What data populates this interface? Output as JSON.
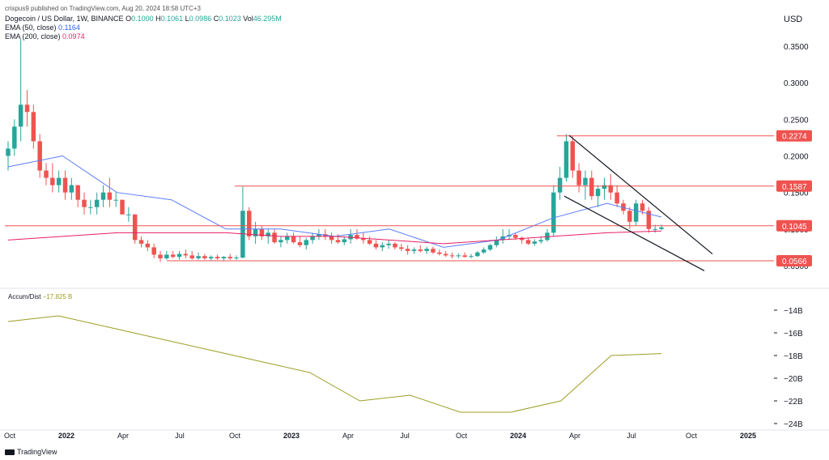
{
  "header": {
    "attribution": "crispus9 published on TradingView.com, Aug 20, 2024 18:58 UTC+3"
  },
  "legend": {
    "symbol": "Dogecoin / US Dollar, 1W, BINANCE",
    "ohlc": [
      {
        "k": "O",
        "v": "0.1000"
      },
      {
        "k": "H",
        "v": "0.1061"
      },
      {
        "k": "L",
        "v": "0.0986"
      },
      {
        "k": "C",
        "v": "0.1023"
      },
      {
        "k": "Vol",
        "v": "46.295M"
      }
    ],
    "ema50_label": "EMA (50, close)",
    "ema50_value": "0.1164",
    "ema200_label": "EMA (200, close)",
    "ema200_value": "0.0974"
  },
  "currency": "USD",
  "indicator": {
    "label": "Accum/Dist",
    "value": "−17.825 B"
  },
  "footer": {
    "brand": "TradingView"
  },
  "colors": {
    "up": "#26a69a",
    "down": "#ef5350",
    "ema50": "#5b7cfa",
    "ema200": "#e91e63",
    "ad": "#9e9d24",
    "level": "#ef5350"
  },
  "chart_data": {
    "type": "candlestick",
    "timeframe": "1W",
    "price_ticks": [
      "0.3500",
      "0.3000",
      "0.2500",
      "0.2000",
      "0.1500",
      "0.1000",
      "0.0500"
    ],
    "ad_ticks": [
      "−14B",
      "−16B",
      "−18B",
      "−20B",
      "−22B",
      "−24B"
    ],
    "x_ticks": [
      "Oct",
      "2022",
      "Apr",
      "Jul",
      "Oct",
      "2023",
      "Apr",
      "Jul",
      "Oct",
      "2024",
      "Apr",
      "Jul",
      "Oct",
      "2025"
    ],
    "levels": [
      "0.2274",
      "0.1587",
      "0.1045",
      "0.0566"
    ],
    "ema50": [
      [
        0.185,
        0.2
      ],
      [
        0.15,
        0.14
      ],
      [
        0.1,
        0.1
      ],
      [
        0.09,
        0.1
      ],
      [
        0.075,
        0.085
      ],
      [
        0.115,
        0.135
      ],
      [
        0.1164
      ]
    ],
    "ema200": [
      [
        0.085,
        0.09
      ],
      [
        0.095,
        0.095
      ],
      [
        0.095,
        0.09
      ],
      [
        0.09,
        0.085
      ],
      [
        0.08,
        0.085
      ],
      [
        0.09,
        0.095
      ],
      [
        0.0974
      ]
    ],
    "ad_series": [
      [
        -15.0,
        -14.5
      ],
      [
        -15.5,
        -16.5
      ],
      [
        -17.5,
        -18.5
      ],
      [
        -19.5,
        -22.0
      ],
      [
        -21.5,
        -23.0
      ],
      [
        -23.0,
        -22.0
      ],
      [
        -18.0,
        -17.825
      ]
    ],
    "candles": [
      [
        0.2,
        0.22,
        0.18,
        0.21
      ],
      [
        0.21,
        0.25,
        0.2,
        0.24
      ],
      [
        0.24,
        0.36,
        0.22,
        0.27
      ],
      [
        0.27,
        0.29,
        0.24,
        0.26
      ],
      [
        0.26,
        0.27,
        0.21,
        0.22
      ],
      [
        0.22,
        0.23,
        0.17,
        0.18
      ],
      [
        0.18,
        0.19,
        0.16,
        0.17
      ],
      [
        0.17,
        0.19,
        0.15,
        0.16
      ],
      [
        0.16,
        0.18,
        0.15,
        0.17
      ],
      [
        0.17,
        0.18,
        0.14,
        0.15
      ],
      [
        0.15,
        0.17,
        0.14,
        0.16
      ],
      [
        0.16,
        0.16,
        0.13,
        0.14
      ],
      [
        0.14,
        0.15,
        0.12,
        0.13
      ],
      [
        0.13,
        0.14,
        0.12,
        0.13
      ],
      [
        0.13,
        0.15,
        0.12,
        0.14
      ],
      [
        0.14,
        0.16,
        0.13,
        0.15
      ],
      [
        0.15,
        0.17,
        0.13,
        0.14
      ],
      [
        0.14,
        0.15,
        0.13,
        0.14
      ],
      [
        0.14,
        0.14,
        0.12,
        0.12
      ],
      [
        0.12,
        0.13,
        0.11,
        0.12
      ],
      [
        0.12,
        0.12,
        0.08,
        0.085
      ],
      [
        0.085,
        0.09,
        0.075,
        0.08
      ],
      [
        0.08,
        0.085,
        0.07,
        0.075
      ],
      [
        0.075,
        0.08,
        0.06,
        0.065
      ],
      [
        0.065,
        0.07,
        0.055,
        0.06
      ],
      [
        0.06,
        0.07,
        0.058,
        0.065
      ],
      [
        0.065,
        0.07,
        0.06,
        0.062
      ],
      [
        0.062,
        0.07,
        0.058,
        0.066
      ],
      [
        0.066,
        0.072,
        0.06,
        0.064
      ],
      [
        0.064,
        0.07,
        0.058,
        0.06
      ],
      [
        0.06,
        0.068,
        0.058,
        0.063
      ],
      [
        0.063,
        0.066,
        0.058,
        0.06
      ],
      [
        0.06,
        0.064,
        0.057,
        0.062
      ],
      [
        0.062,
        0.065,
        0.058,
        0.06
      ],
      [
        0.06,
        0.063,
        0.057,
        0.062
      ],
      [
        0.062,
        0.066,
        0.058,
        0.06
      ],
      [
        0.06,
        0.064,
        0.058,
        0.061
      ],
      [
        0.061,
        0.158,
        0.06,
        0.125
      ],
      [
        0.125,
        0.13,
        0.085,
        0.09
      ],
      [
        0.09,
        0.11,
        0.08,
        0.1
      ],
      [
        0.1,
        0.105,
        0.085,
        0.09
      ],
      [
        0.09,
        0.1,
        0.08,
        0.095
      ],
      [
        0.095,
        0.1,
        0.08,
        0.082
      ],
      [
        0.082,
        0.09,
        0.075,
        0.085
      ],
      [
        0.085,
        0.095,
        0.08,
        0.09
      ],
      [
        0.09,
        0.095,
        0.08,
        0.082
      ],
      [
        0.082,
        0.09,
        0.075,
        0.078
      ],
      [
        0.078,
        0.088,
        0.072,
        0.085
      ],
      [
        0.085,
        0.095,
        0.08,
        0.09
      ],
      [
        0.09,
        0.1,
        0.085,
        0.093
      ],
      [
        0.093,
        0.1,
        0.085,
        0.09
      ],
      [
        0.09,
        0.095,
        0.08,
        0.085
      ],
      [
        0.085,
        0.093,
        0.08,
        0.082
      ],
      [
        0.082,
        0.09,
        0.078,
        0.086
      ],
      [
        0.086,
        0.1,
        0.08,
        0.092
      ],
      [
        0.092,
        0.1,
        0.085,
        0.087
      ],
      [
        0.087,
        0.095,
        0.08,
        0.085
      ],
      [
        0.085,
        0.09,
        0.078,
        0.08
      ],
      [
        0.08,
        0.085,
        0.072,
        0.075
      ],
      [
        0.075,
        0.082,
        0.07,
        0.078
      ],
      [
        0.078,
        0.085,
        0.073,
        0.08
      ],
      [
        0.08,
        0.082,
        0.072,
        0.075
      ],
      [
        0.075,
        0.08,
        0.07,
        0.073
      ],
      [
        0.073,
        0.078,
        0.065,
        0.07
      ],
      [
        0.07,
        0.075,
        0.066,
        0.072
      ],
      [
        0.072,
        0.078,
        0.068,
        0.07
      ],
      [
        0.07,
        0.076,
        0.066,
        0.073
      ],
      [
        0.073,
        0.076,
        0.066,
        0.068
      ],
      [
        0.068,
        0.072,
        0.064,
        0.066
      ],
      [
        0.066,
        0.07,
        0.062,
        0.064
      ],
      [
        0.064,
        0.068,
        0.06,
        0.063
      ],
      [
        0.063,
        0.067,
        0.06,
        0.064
      ],
      [
        0.064,
        0.068,
        0.061,
        0.062
      ],
      [
        0.062,
        0.066,
        0.06,
        0.063
      ],
      [
        0.063,
        0.07,
        0.062,
        0.068
      ],
      [
        0.068,
        0.075,
        0.066,
        0.072
      ],
      [
        0.072,
        0.08,
        0.07,
        0.078
      ],
      [
        0.078,
        0.09,
        0.075,
        0.085
      ],
      [
        0.085,
        0.1,
        0.08,
        0.09
      ],
      [
        0.09,
        0.1,
        0.085,
        0.092
      ],
      [
        0.092,
        0.095,
        0.085,
        0.088
      ],
      [
        0.088,
        0.09,
        0.08,
        0.085
      ],
      [
        0.085,
        0.088,
        0.078,
        0.08
      ],
      [
        0.08,
        0.086,
        0.077,
        0.083
      ],
      [
        0.083,
        0.09,
        0.08,
        0.085
      ],
      [
        0.085,
        0.1,
        0.083,
        0.095
      ],
      [
        0.095,
        0.16,
        0.09,
        0.15
      ],
      [
        0.15,
        0.185,
        0.14,
        0.17
      ],
      [
        0.17,
        0.23,
        0.165,
        0.22
      ],
      [
        0.22,
        0.2274,
        0.17,
        0.18
      ],
      [
        0.18,
        0.19,
        0.15,
        0.16
      ],
      [
        0.16,
        0.18,
        0.14,
        0.17
      ],
      [
        0.17,
        0.18,
        0.14,
        0.145
      ],
      [
        0.145,
        0.16,
        0.13,
        0.155
      ],
      [
        0.155,
        0.17,
        0.14,
        0.16
      ],
      [
        0.16,
        0.175,
        0.14,
        0.15
      ],
      [
        0.15,
        0.16,
        0.13,
        0.135
      ],
      [
        0.135,
        0.14,
        0.12,
        0.125
      ],
      [
        0.125,
        0.13,
        0.1,
        0.11
      ],
      [
        0.11,
        0.14,
        0.105,
        0.135
      ],
      [
        0.135,
        0.14,
        0.12,
        0.125
      ],
      [
        0.125,
        0.13,
        0.095,
        0.1
      ],
      [
        0.1,
        0.106,
        0.095,
        0.1
      ],
      [
        0.1,
        0.1061,
        0.0986,
        0.1023
      ]
    ]
  }
}
